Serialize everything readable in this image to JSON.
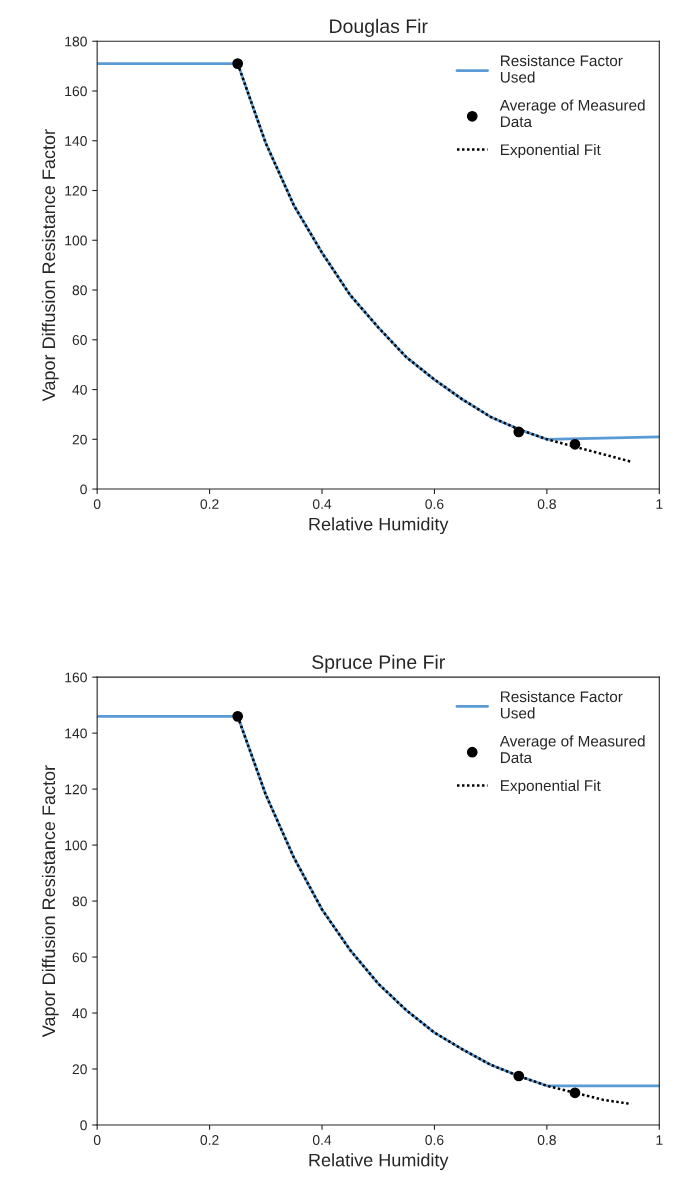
{
  "chart_data": [
    {
      "type": "line",
      "title": "Douglas Fir",
      "xlabel": "Relative Humidity",
      "ylabel": "Vapor Diffusion Resistance Factor",
      "xlim": [
        0,
        1
      ],
      "xticks": [
        0,
        0.2,
        0.4,
        0.6,
        0.8,
        1
      ],
      "ylim": [
        0,
        180
      ],
      "yticks": [
        0,
        20,
        40,
        60,
        80,
        100,
        120,
        140,
        160,
        180
      ],
      "grid": false,
      "legend": "top right",
      "series": [
        {
          "name": "Resistance Factor\nUsed",
          "color": "#5b9bd5",
          "line_style": "solid",
          "marker": "none",
          "x": [
            0,
            0.25,
            0.3,
            0.35,
            0.4,
            0.45,
            0.5,
            0.55,
            0.6,
            0.65,
            0.7,
            0.75,
            0.8,
            1
          ],
          "values": [
            171,
            171,
            139,
            114,
            95,
            78,
            65,
            53,
            44,
            36,
            29,
            24,
            20,
            21
          ]
        },
        {
          "name": "Average of Measured\nData",
          "type": "scatter",
          "color": "#000000",
          "marker": "circle",
          "x": [
            0.25,
            0.75,
            0.85
          ],
          "values": [
            171,
            23,
            18
          ]
        },
        {
          "name": "Exponential Fit",
          "color": "#000000",
          "line_style": "dotted",
          "marker": "none",
          "x": [
            0.25,
            0.3,
            0.35,
            0.4,
            0.45,
            0.5,
            0.55,
            0.6,
            0.65,
            0.7,
            0.75,
            0.8,
            0.85,
            0.9,
            0.95
          ],
          "values": [
            171,
            139,
            114,
            95,
            78,
            65,
            53,
            44,
            36,
            29,
            24,
            20,
            17,
            14,
            11
          ]
        }
      ]
    },
    {
      "type": "line",
      "title": "Spruce Pine Fir",
      "xlabel": "Relative Humidity",
      "ylabel": "Vapor Diffusion Resistance Factor",
      "xlim": [
        0,
        1
      ],
      "xticks": [
        0,
        0.2,
        0.4,
        0.6,
        0.8,
        1
      ],
      "ylim": [
        0,
        160
      ],
      "yticks": [
        0,
        20,
        40,
        60,
        80,
        100,
        120,
        140,
        160
      ],
      "grid": false,
      "legend": "top right",
      "series": [
        {
          "name": "Resistance Factor\nUsed",
          "color": "#5b9bd5",
          "line_style": "solid",
          "marker": "none",
          "x": [
            0,
            0.25,
            0.3,
            0.35,
            0.4,
            0.45,
            0.5,
            0.55,
            0.6,
            0.65,
            0.7,
            0.75,
            0.8,
            1
          ],
          "values": [
            146,
            146,
            118,
            95.5,
            77,
            62.5,
            50.5,
            41,
            33,
            27,
            21.5,
            17.5,
            14,
            14
          ]
        },
        {
          "name": "Average of Measured\nData",
          "type": "scatter",
          "color": "#000000",
          "marker": "circle",
          "x": [
            0.25,
            0.75,
            0.85
          ],
          "values": [
            146,
            17.5,
            11.5
          ]
        },
        {
          "name": "Exponential Fit",
          "color": "#000000",
          "line_style": "dotted",
          "marker": "none",
          "x": [
            0.25,
            0.3,
            0.35,
            0.4,
            0.45,
            0.5,
            0.55,
            0.6,
            0.65,
            0.7,
            0.75,
            0.8,
            0.85,
            0.9,
            0.95
          ],
          "values": [
            146,
            118,
            95.5,
            77,
            62.5,
            50.5,
            41,
            33,
            27,
            21.5,
            17.5,
            14,
            11.5,
            9,
            7.5
          ]
        }
      ]
    }
  ]
}
